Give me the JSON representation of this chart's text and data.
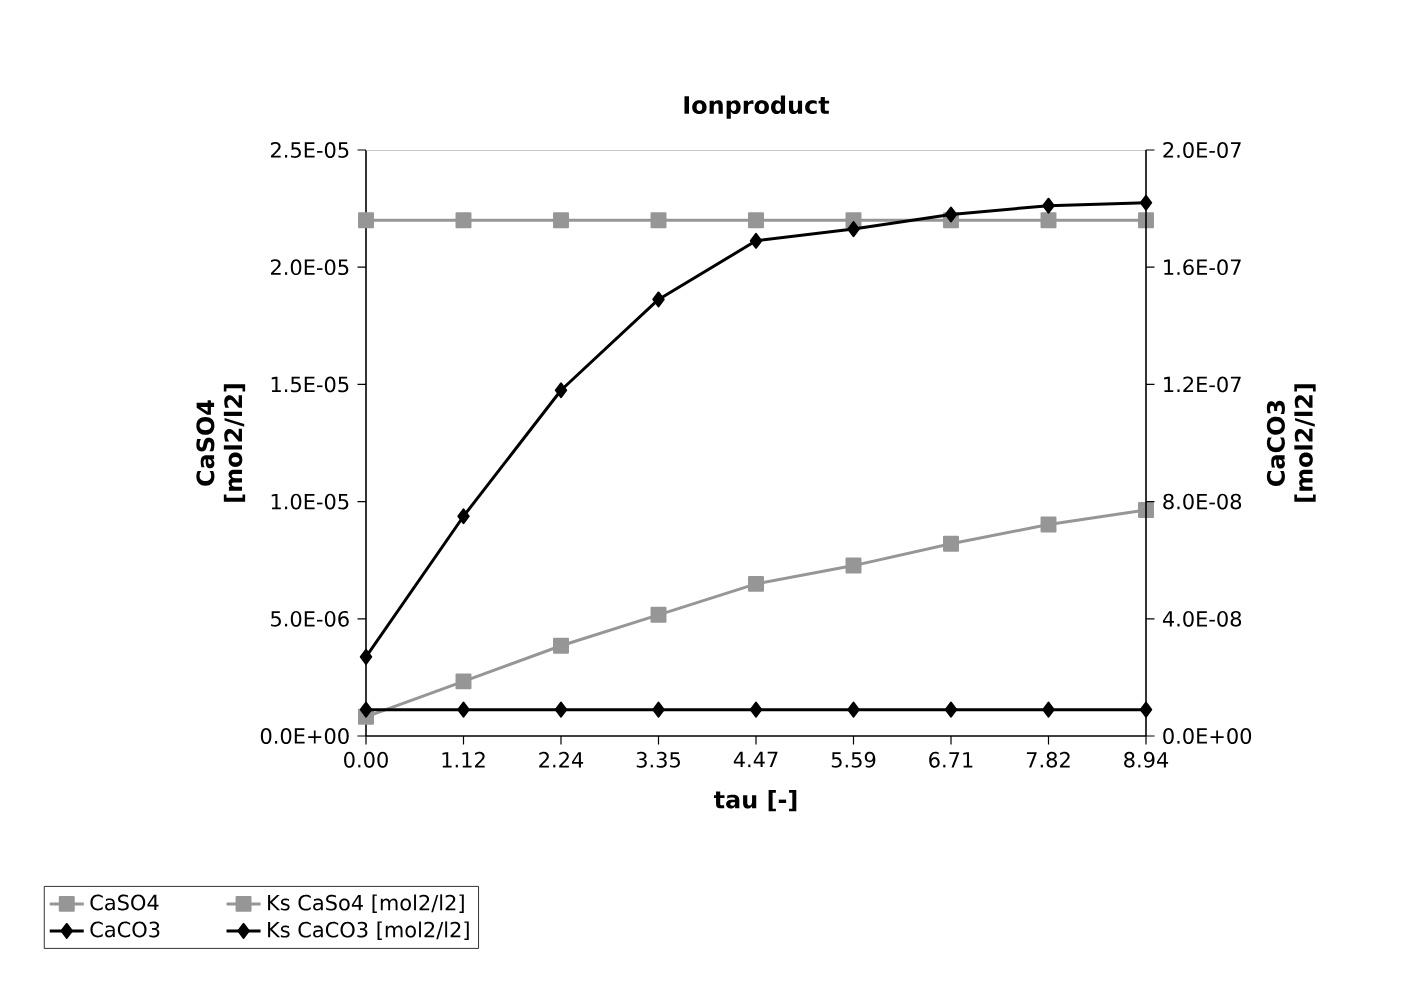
{
  "chart_data": {
    "type": "line",
    "title": "Ionproduct",
    "xlabel": "tau [-]",
    "ylabel": "CaSO4 [mol2/l2]",
    "y2label": "CaCO3 [mol2/l2]",
    "categories": [
      "0.00",
      "1.12",
      "2.24",
      "3.35",
      "4.47",
      "5.59",
      "6.71",
      "7.82",
      "8.94"
    ],
    "series": [
      {
        "name": "CaSO4",
        "color": "#969696",
        "marker": "square",
        "values": [
          8.2e-07,
          2.33e-06,
          3.85e-06,
          5.17e-06,
          6.49e-06,
          7.27e-06,
          8.2e-06,
          9.02e-06,
          9.64e-06
        ]
      },
      {
        "name": "Ks CaSo4 [mol2/l2]",
        "color": "#969696",
        "marker": "square",
        "values": [
          2.2e-05,
          2.2e-05,
          2.2e-05,
          2.2e-05,
          2.2e-05,
          2.2e-05,
          2.2e-05,
          2.2e-05,
          2.2e-05
        ]
      },
      {
        "name": "CaCO3",
        "color": "#000000",
        "marker": "diamond",
        "axis": "y2",
        "values": [
          2.7e-08,
          7.5e-08,
          1.18e-07,
          1.49e-07,
          1.69e-07,
          1.73e-07,
          1.78e-07,
          1.81e-07,
          1.82e-07
        ]
      },
      {
        "name": "Ks CaCO3 [mol2/l2]",
        "color": "#000000",
        "marker": "diamond",
        "axis": "y2",
        "values": [
          9e-09,
          9e-09,
          9e-09,
          9e-09,
          9e-09,
          9e-09,
          9e-09,
          9e-09,
          9e-09
        ]
      }
    ],
    "ylim": [
      0,
      2.5e-05
    ],
    "yticks": [
      {
        "value": 0,
        "label": "0.0E+00"
      },
      {
        "value": 5e-06,
        "label": "5.0E-06"
      },
      {
        "value": 1e-05,
        "label": "1.0E-05"
      },
      {
        "value": 1.5e-05,
        "label": "1.5E-05"
      },
      {
        "value": 2e-05,
        "label": "2.0E-05"
      },
      {
        "value": 2.5e-05,
        "label": "2.5E-05"
      }
    ],
    "y2lim": [
      0,
      2e-07
    ],
    "y2ticks": [
      {
        "value": 0,
        "label": "0.0E+00"
      },
      {
        "value": 4e-08,
        "label": "4.0E-08"
      },
      {
        "value": 8e-08,
        "label": "8.0E-08"
      },
      {
        "value": 1.2e-07,
        "label": "1.2E-07"
      },
      {
        "value": 1.6e-07,
        "label": "1.6E-07"
      },
      {
        "value": 2e-07,
        "label": "2.0E-07"
      }
    ],
    "legend": "bottom"
  }
}
